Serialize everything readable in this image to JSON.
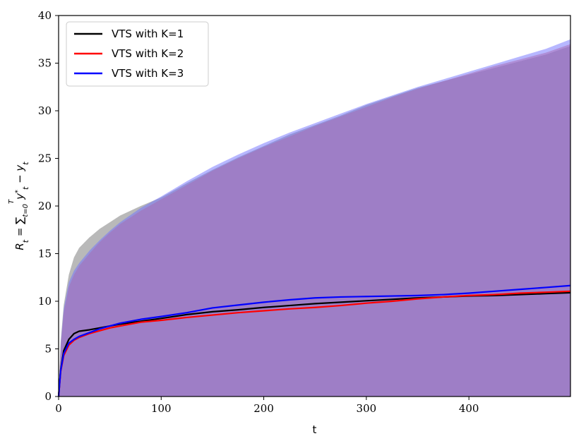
{
  "chart_data": {
    "type": "line",
    "title": "",
    "xlabel": "t",
    "ylabel": "R_t = ∑_{t=0}^{T} y*_t − y_t",
    "ylabel_parts": {
      "main": "R",
      "sub_t": "t",
      "eq": " = ∑",
      "sub_range": "t=0",
      "sup_range": "T",
      "y": "y",
      "sup_star": "*",
      "sub_t2": "t",
      "minus": " − y",
      "sub_t3": "t"
    },
    "xlim": [
      0,
      499
    ],
    "ylim": [
      0,
      40
    ],
    "xticks": [
      0,
      100,
      200,
      300,
      400
    ],
    "yticks": [
      0,
      5,
      10,
      15,
      20,
      25,
      30,
      35,
      40
    ],
    "grid": false,
    "legend_position": "top-left",
    "x": [
      0,
      2,
      5,
      10,
      15,
      20,
      30,
      40,
      50,
      60,
      80,
      100,
      125,
      150,
      175,
      200,
      225,
      250,
      275,
      300,
      325,
      350,
      375,
      400,
      425,
      450,
      475,
      499
    ],
    "series": [
      {
        "name": "VTS with K=1",
        "color": "#000000",
        "band_color": "#808080",
        "values": [
          0,
          2.8,
          4.8,
          6.0,
          6.6,
          6.85,
          7.0,
          7.2,
          7.4,
          7.6,
          7.9,
          8.2,
          8.6,
          8.9,
          9.1,
          9.35,
          9.55,
          9.75,
          9.9,
          10.05,
          10.2,
          10.35,
          10.45,
          10.55,
          10.6,
          10.7,
          10.8,
          10.9
        ],
        "upper": [
          0,
          5.8,
          9.6,
          12.8,
          14.6,
          15.6,
          16.7,
          17.6,
          18.3,
          19.0,
          20.0,
          20.9,
          22.4,
          23.8,
          25.1,
          26.3,
          27.5,
          28.5,
          29.5,
          30.6,
          31.5,
          32.4,
          33.1,
          33.8,
          34.5,
          35.2,
          35.9,
          36.8
        ]
      },
      {
        "name": "VTS with K=2",
        "color": "#ff0000",
        "band_color": "#e06060",
        "values": [
          0,
          2.6,
          4.3,
          5.4,
          5.9,
          6.2,
          6.6,
          6.9,
          7.2,
          7.4,
          7.8,
          8.0,
          8.3,
          8.55,
          8.8,
          9.0,
          9.2,
          9.35,
          9.55,
          9.8,
          10.0,
          10.25,
          10.45,
          10.6,
          10.7,
          10.85,
          10.95,
          11.05
        ],
        "upper": [
          0,
          5.2,
          8.8,
          11.5,
          12.8,
          13.7,
          15.0,
          16.2,
          17.2,
          18.1,
          19.5,
          20.7,
          22.2,
          23.7,
          25.0,
          26.2,
          27.3,
          28.4,
          29.4,
          30.4,
          31.4,
          32.3,
          33.1,
          33.9,
          34.7,
          35.4,
          36.1,
          37.0
        ]
      },
      {
        "name": "VTS with K=3",
        "color": "#0000ff",
        "band_color": "#7070ff",
        "values": [
          0,
          2.7,
          4.5,
          5.6,
          6.0,
          6.3,
          6.7,
          7.1,
          7.4,
          7.7,
          8.1,
          8.4,
          8.8,
          9.3,
          9.6,
          9.9,
          10.15,
          10.35,
          10.45,
          10.5,
          10.55,
          10.6,
          10.7,
          10.85,
          11.05,
          11.25,
          11.45,
          11.65
        ],
        "upper": [
          0,
          5.4,
          9.2,
          12.0,
          13.2,
          14.0,
          15.3,
          16.4,
          17.4,
          18.3,
          19.8,
          21.0,
          22.6,
          24.1,
          25.4,
          26.6,
          27.7,
          28.7,
          29.7,
          30.7,
          31.6,
          32.5,
          33.3,
          34.1,
          34.9,
          35.7,
          36.5,
          37.5
        ]
      }
    ]
  }
}
